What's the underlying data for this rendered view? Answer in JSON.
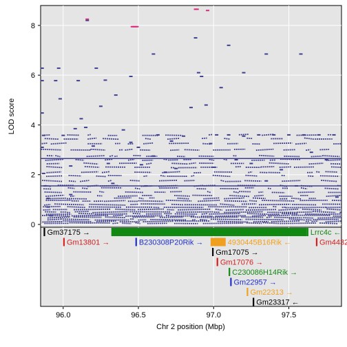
{
  "chart_data": [
    {
      "type": "scatter",
      "title": "",
      "xlabel": "",
      "ylabel": "LOD score",
      "xlim": [
        95.85,
        97.85
      ],
      "ylim": [
        0,
        8.8
      ],
      "yticks": [
        "0",
        "2",
        "4",
        "6",
        "8"
      ],
      "ytick_values": [
        0,
        2,
        4,
        6,
        8
      ],
      "grid": true,
      "point_color": "#3f3f8f",
      "highlight_color": "#d62b7a",
      "band_color": "#3f3f8f",
      "threshold_lines": [
        2.65,
        1.55
      ],
      "series": [
        {
          "values": [
            [
              95.86,
              6.28
            ],
            [
              95.86,
              5.78
            ],
            [
              95.86,
              4.48
            ],
            [
              95.87,
              3.58
            ],
            [
              95.86,
              3.1
            ],
            [
              95.87,
              2.05
            ],
            [
              95.88,
              1.55
            ],
            [
              95.9,
              1.05
            ],
            [
              95.9,
              0.7
            ],
            [
              95.92,
              0.35
            ],
            [
              95.95,
              5.78
            ],
            [
              95.97,
              6.28
            ],
            [
              95.98,
              5.05
            ],
            [
              96.0,
              3.58
            ],
            [
              96.05,
              2.35
            ],
            [
              96.05,
              1.2
            ],
            [
              96.08,
              3.85
            ],
            [
              96.1,
              5.78
            ],
            [
              96.12,
              4.25
            ],
            [
              96.15,
              3.9
            ],
            [
              96.16,
              8.2
            ],
            [
              96.2,
              3.15
            ],
            [
              96.22,
              6.28
            ],
            [
              96.25,
              4.75
            ],
            [
              96.28,
              5.8
            ],
            [
              96.3,
              2.45
            ],
            [
              96.33,
              1.65
            ],
            [
              96.35,
              5.2
            ],
            [
              96.4,
              3.8
            ],
            [
              96.45,
              3.3
            ],
            [
              96.5,
              3.1
            ],
            [
              96.52,
              2.4
            ],
            [
              96.55,
              1.55
            ],
            [
              96.6,
              2.75
            ],
            [
              96.63,
              3.6
            ],
            [
              96.68,
              2.1
            ],
            [
              96.72,
              3.35
            ],
            [
              96.75,
              2.25
            ],
            [
              96.8,
              3.55
            ],
            [
              96.85,
              4.7
            ],
            [
              96.88,
              7.5
            ],
            [
              96.9,
              6.1
            ],
            [
              96.92,
              5.95
            ],
            [
              96.95,
              4.8
            ],
            [
              96.98,
              3.25
            ],
            [
              97.0,
              2.3
            ],
            [
              97.02,
              3.6
            ],
            [
              97.05,
              5.5
            ],
            [
              97.1,
              3.6
            ],
            [
              97.15,
              2.6
            ],
            [
              97.2,
              3.55
            ],
            [
              97.25,
              2.45
            ],
            [
              97.3,
              3.6
            ],
            [
              97.35,
              1.75
            ],
            [
              97.4,
              3.6
            ],
            [
              97.45,
              2.2
            ],
            [
              97.5,
              3.6
            ],
            [
              97.55,
              1.55
            ],
            [
              97.6,
              3.6
            ],
            [
              97.65,
              2.9
            ],
            [
              97.7,
              3.6
            ],
            [
              97.75,
              2.6
            ],
            [
              97.8,
              3.6
            ],
            [
              97.82,
              1.1
            ],
            [
              97.1,
              7.2
            ],
            [
              97.2,
              6.1
            ],
            [
              97.35,
              6.85
            ],
            [
              97.58,
              6.85
            ],
            [
              96.6,
              6.85
            ],
            [
              96.45,
              5.95
            ]
          ]
        },
        {
          "values": [
            [
              96.16,
              8.25
            ],
            [
              96.46,
              7.95
            ],
            [
              96.47,
              7.95
            ],
            [
              96.48,
              7.95
            ],
            [
              96.49,
              7.95
            ],
            [
              96.88,
              8.65
            ],
            [
              96.89,
              8.65
            ],
            [
              96.96,
              8.6
            ]
          ]
        }
      ]
    },
    {
      "type": "table",
      "xlabel": "Chr 2 position (Mbp)",
      "xticks": [
        "96.0",
        "96.5",
        "97.0",
        "97.5"
      ],
      "xtick_values": [
        96.0,
        96.5,
        97.0,
        97.5
      ],
      "genes": [
        {
          "label": "Gm37175 →",
          "start": 95.87,
          "end": 95.88,
          "row": 0,
          "color": "#000000"
        },
        {
          "label": "",
          "start": 96.32,
          "end": 97.62,
          "row": 0,
          "color": "#118811"
        },
        {
          "label": "Lrrc4c ←",
          "start": 97.62,
          "end": 97.63,
          "row": 0,
          "color": "#118811"
        },
        {
          "label": "Gm13801 →",
          "start": 96.0,
          "end": 96.01,
          "row": 1,
          "color": "#d42020"
        },
        {
          "label": "B230308P20Rik →",
          "start": 96.48,
          "end": 96.49,
          "row": 1,
          "color": "#1f2fc8"
        },
        {
          "label": "4930445B16Rik ←",
          "start": 96.98,
          "end": 97.08,
          "row": 1,
          "color": "#f0a020"
        },
        {
          "label": "Gm4432",
          "start": 97.68,
          "end": 97.69,
          "row": 1,
          "color": "#d42020"
        },
        {
          "label": "Gm17075 →",
          "start": 96.99,
          "end": 97.0,
          "row": 2,
          "color": "#000000"
        },
        {
          "label": "Gm17076 →",
          "start": 97.02,
          "end": 97.03,
          "row": 3,
          "color": "#d42020"
        },
        {
          "label": "C230086H14Rik →",
          "start": 97.1,
          "end": 97.11,
          "row": 4,
          "color": "#118811"
        },
        {
          "label": "Gm22957 →",
          "start": 97.11,
          "end": 97.12,
          "row": 5,
          "color": "#1f2fc8"
        },
        {
          "label": "Gm22313 →",
          "start": 97.22,
          "end": 97.23,
          "row": 6,
          "color": "#f0a020"
        },
        {
          "label": "Gm23317 ←",
          "start": 97.26,
          "end": 97.27,
          "row": 7,
          "color": "#000000"
        }
      ]
    }
  ]
}
